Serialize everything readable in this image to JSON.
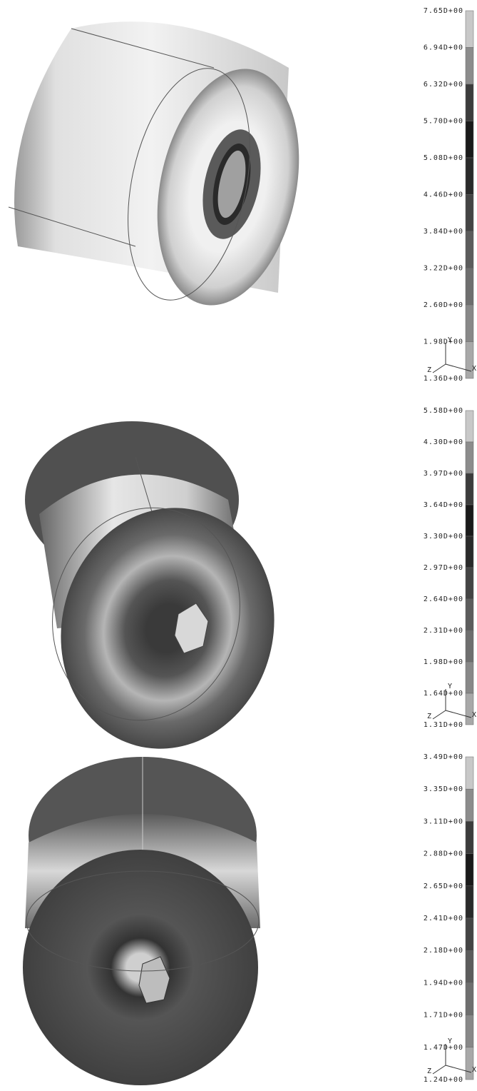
{
  "panels": [
    {
      "legend": [
        "7.65D+00",
        "6.94D+00",
        "6.32D+00",
        "5.70D+00",
        "5.08D+00",
        "4.46D+00",
        "3.84D+00",
        "3.22D+00",
        "2.60D+00",
        "1.98D+00",
        "1.36D+00"
      ],
      "triad": [
        "Y",
        "Z",
        "X"
      ]
    },
    {
      "legend": [
        "5.58D+00",
        "4.30D+00",
        "3.97D+00",
        "3.64D+00",
        "3.30D+00",
        "2.97D+00",
        "2.64D+00",
        "2.31D+00",
        "1.98D+00",
        "1.64D+00",
        "1.31D+00"
      ],
      "triad": [
        "Y",
        "Z",
        "X"
      ]
    },
    {
      "legend": [
        "3.49D+00",
        "3.35D+00",
        "3.11D+00",
        "2.88D+00",
        "2.65D+00",
        "2.41D+00",
        "2.18D+00",
        "1.94D+00",
        "1.71D+00",
        "1.47D+00",
        "1.24D+00"
      ],
      "triad": [
        "Y",
        "Z",
        "X"
      ]
    }
  ]
}
